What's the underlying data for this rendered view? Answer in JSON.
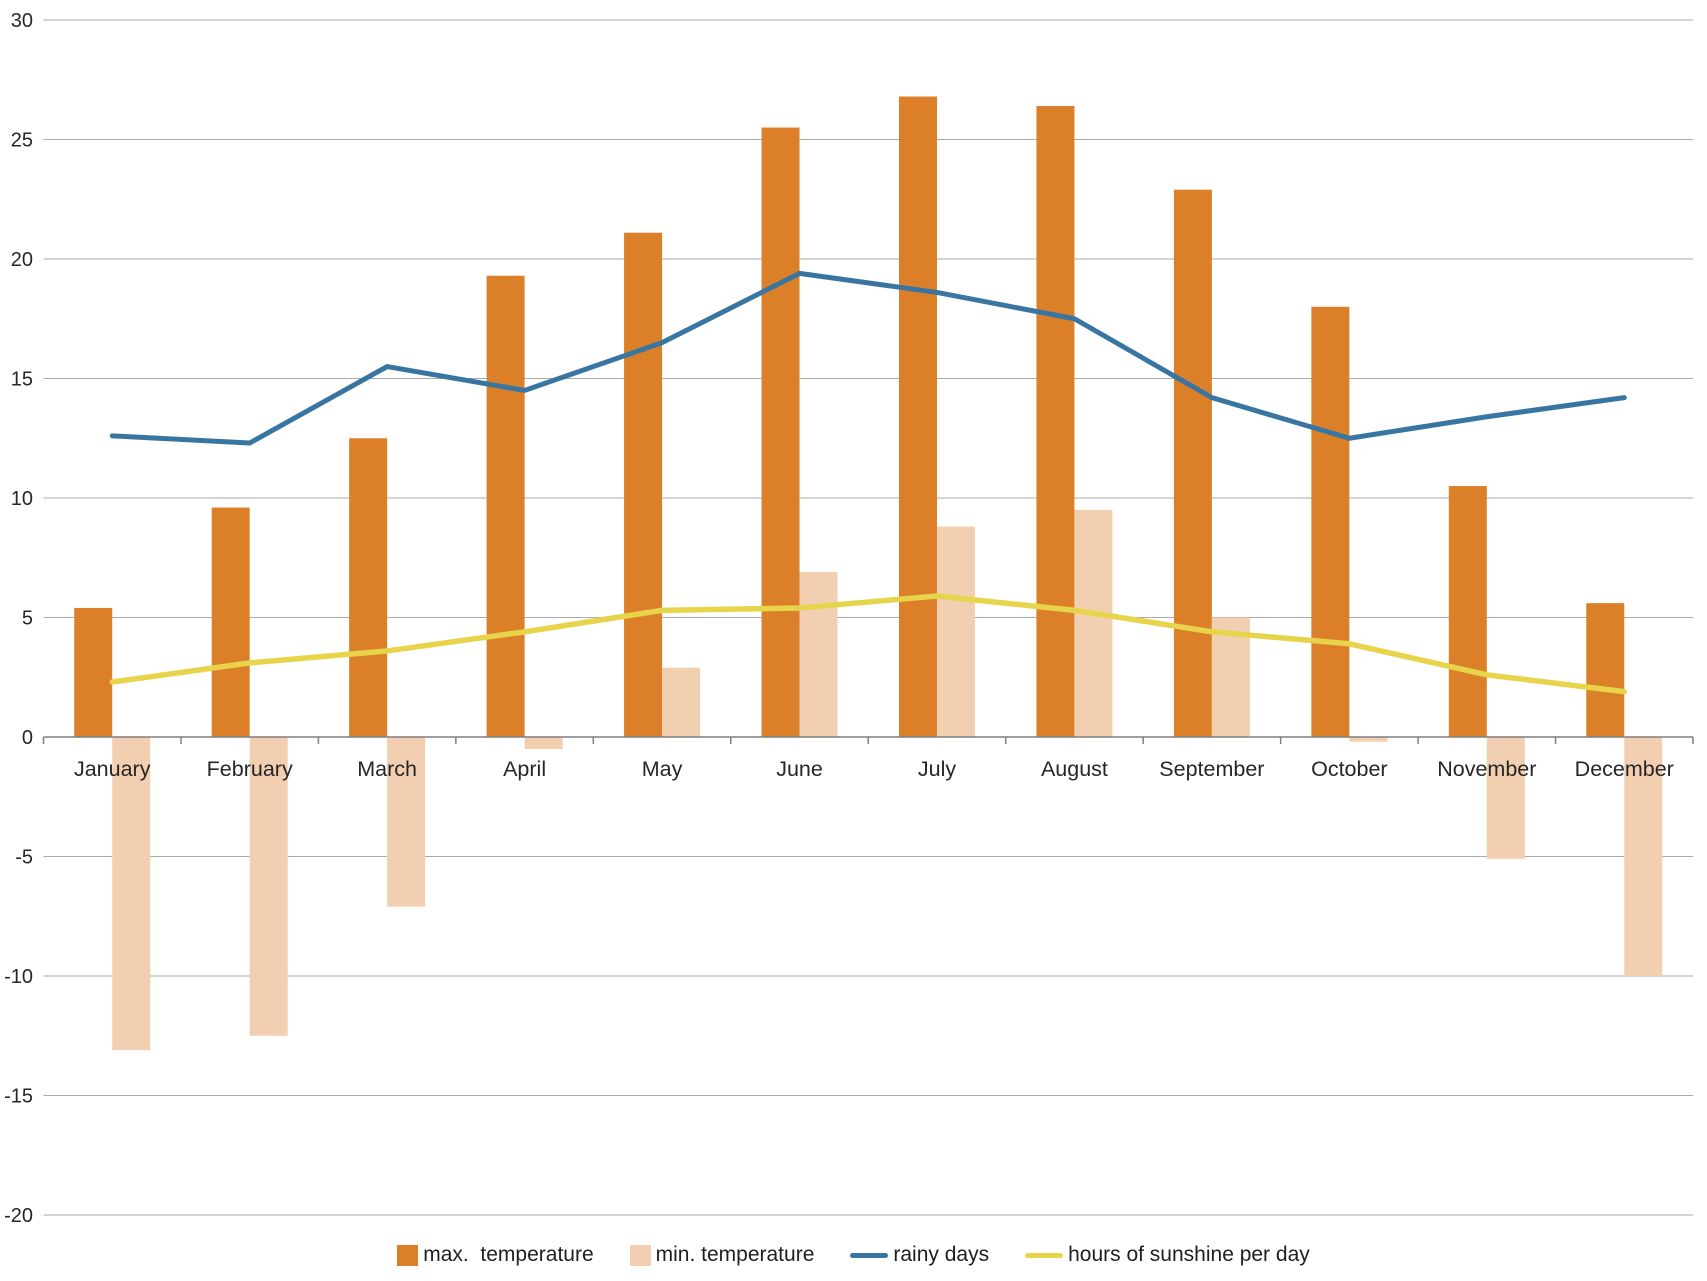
{
  "chart_data": {
    "type": "bar",
    "title": "",
    "xlabel": "",
    "ylabel": "",
    "categories": [
      "January",
      "February",
      "March",
      "April",
      "May",
      "June",
      "July",
      "August",
      "September",
      "October",
      "November",
      "December"
    ],
    "series": [
      {
        "name": "max.  temperature",
        "type": "bar",
        "color": "#DB8028",
        "values": [
          5.4,
          9.6,
          12.5,
          19.3,
          21.1,
          25.5,
          26.8,
          26.4,
          22.9,
          18.0,
          10.5,
          5.6
        ]
      },
      {
        "name": "min. temperature",
        "type": "bar",
        "color": "#F3CFB1",
        "values": [
          -13.1,
          -12.5,
          -7.1,
          -0.5,
          2.9,
          6.9,
          8.8,
          9.5,
          5.0,
          -0.2,
          -5.1,
          -10.0
        ]
      },
      {
        "name": "rainy days",
        "type": "line",
        "color": "#3876A1",
        "values": [
          12.6,
          12.3,
          15.5,
          14.5,
          16.5,
          19.4,
          18.6,
          17.5,
          14.2,
          12.5,
          13.4,
          14.2
        ]
      },
      {
        "name": "hours of sunshine per day",
        "type": "line",
        "color": "#E8D44A",
        "values": [
          2.3,
          3.1,
          3.6,
          4.4,
          5.3,
          5.4,
          5.9,
          5.3,
          4.4,
          3.9,
          2.6,
          1.9
        ]
      }
    ],
    "ylim": [
      -20,
      30
    ],
    "yticks": [
      30,
      25,
      20,
      15,
      10,
      5,
      0,
      -5,
      -10,
      -15,
      -20
    ],
    "grid": true,
    "legend_position": "bottom",
    "colors": {
      "gridline": "#A9A9A9",
      "axis": "#7F7F7F",
      "tick_label": "#262626",
      "background": "#FFFFFF"
    }
  }
}
